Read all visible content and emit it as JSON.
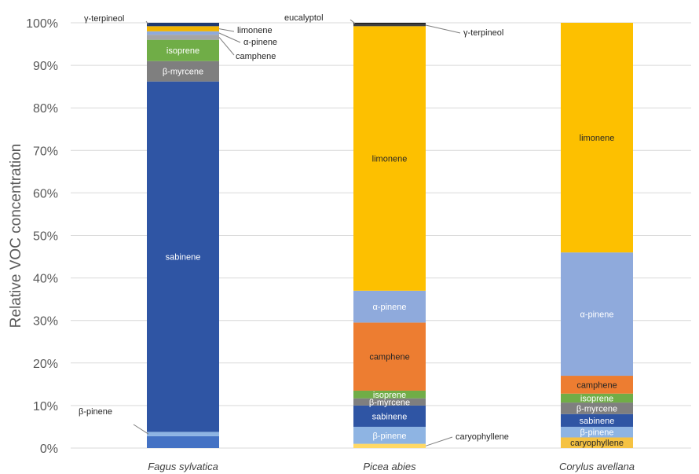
{
  "chart_data": {
    "type": "bar",
    "stacked": true,
    "ylabel": "Relative VOC concentration",
    "ylim": [
      0,
      100
    ],
    "y_ticks": [
      "0%",
      "10%",
      "20%",
      "30%",
      "40%",
      "50%",
      "60%",
      "70%",
      "80%",
      "90%",
      "100%"
    ],
    "grid": true,
    "categories": [
      "Fagus sylvatica",
      "Picea abies",
      "Corylus avellana"
    ],
    "bars": [
      {
        "category": "Fagus sylvatica",
        "segments": [
          {
            "compound": "",
            "value": 2.8,
            "color": "#4472c4"
          },
          {
            "compound": "β-pinene",
            "value": 1.0,
            "color": "#8eb4e3",
            "callout": true
          },
          {
            "compound": "sabinene",
            "value": 82.4,
            "color": "#2f55a4"
          },
          {
            "compound": "β-myrcene",
            "value": 4.8,
            "color": "#7f7f7f"
          },
          {
            "compound": "isoprene",
            "value": 5.0,
            "color": "#70ad47"
          },
          {
            "compound": "camphene",
            "value": 1.2,
            "color": "#a5a5a5",
            "callout": true
          },
          {
            "compound": "α-pinene",
            "value": 0.8,
            "color": "#8faadc",
            "callout": true
          },
          {
            "compound": "limonene",
            "value": 1.2,
            "color": "#f2b400",
            "callout": true
          },
          {
            "compound": "γ-terpineol",
            "value": 0.8,
            "color": "#1f3a70",
            "callout": true
          }
        ]
      },
      {
        "category": "Picea abies",
        "segments": [
          {
            "compound": "caryophyllene",
            "value": 1.0,
            "color": "#ffd966",
            "callout": true
          },
          {
            "compound": "β-pinene",
            "value": 4.0,
            "color": "#8eb4e3"
          },
          {
            "compound": "sabinene",
            "value": 5.0,
            "color": "#2f55a4"
          },
          {
            "compound": "β-myrcene",
            "value": 1.7,
            "color": "#7f7f7f"
          },
          {
            "compound": "isoprene",
            "value": 1.8,
            "color": "#70ad47"
          },
          {
            "compound": "camphene",
            "value": 16.0,
            "color": "#ed7d31"
          },
          {
            "compound": "α-pinene",
            "value": 7.5,
            "color": "#8faadc"
          },
          {
            "compound": "limonene",
            "value": 62.2,
            "color": "#fdc000"
          },
          {
            "compound": "γ-terpineol",
            "value": 0.5,
            "color": "#404040",
            "callout": true
          },
          {
            "compound": "eucalyptol",
            "value": 0.3,
            "color": "#1a1a1a",
            "callout": true
          }
        ]
      },
      {
        "category": "Corylus avellana",
        "segments": [
          {
            "compound": "caryophyllene",
            "value": 2.5,
            "color": "#f5c242"
          },
          {
            "compound": "β-pinene",
            "value": 2.5,
            "color": "#8eb4e3"
          },
          {
            "compound": "sabinene",
            "value": 3.0,
            "color": "#2f55a4"
          },
          {
            "compound": "β-myrcene",
            "value": 2.7,
            "color": "#7f7f7f"
          },
          {
            "compound": "isoprene",
            "value": 2.1,
            "color": "#70ad47"
          },
          {
            "compound": "camphene",
            "value": 4.2,
            "color": "#ed7d31"
          },
          {
            "compound": "α-pinene",
            "value": 29.0,
            "color": "#8faadc"
          },
          {
            "compound": "limonene",
            "value": 54.0,
            "color": "#fdc000"
          }
        ]
      }
    ]
  }
}
